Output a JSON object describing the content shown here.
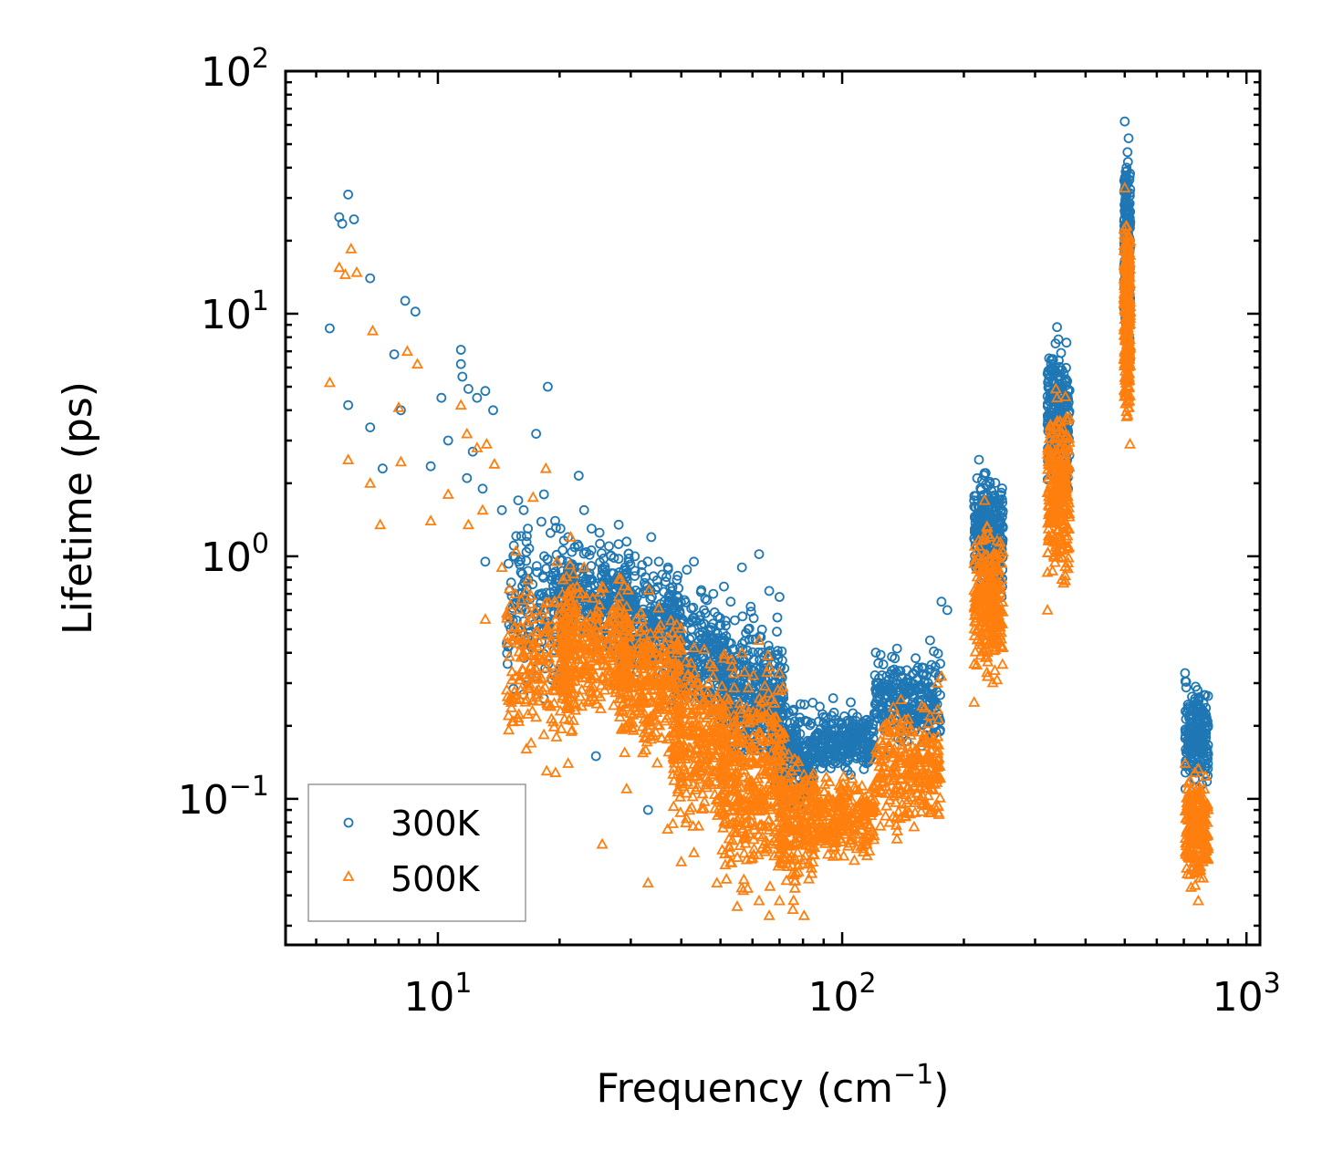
{
  "chart_data": {
    "type": "scatter",
    "title": "",
    "xlabel": "Frequency (cm",
    "xlabel_sup": "−1",
    "xlabel_tail": ")",
    "ylabel": "Lifetime (ps)",
    "xscale": "log",
    "yscale": "log",
    "xlim": [
      4.2,
      1080
    ],
    "ylim": [
      0.025,
      100
    ],
    "x_ticks": [
      {
        "value": 10,
        "base": "10",
        "exp": "1"
      },
      {
        "value": 100,
        "base": "10",
        "exp": "2"
      },
      {
        "value": 1000,
        "base": "10",
        "exp": "3"
      }
    ],
    "y_ticks": [
      {
        "value": 0.1,
        "base": "10",
        "exp": "−1"
      },
      {
        "value": 1,
        "base": "10",
        "exp": "0"
      },
      {
        "value": 10,
        "base": "10",
        "exp": "1"
      },
      {
        "value": 100,
        "base": "10",
        "exp": "2"
      }
    ],
    "legend_position": "bottom-left",
    "series": [
      {
        "name": "300K",
        "marker": "circle-open",
        "color": "#1f77b4",
        "points": [
          [
            5.4,
            8.7
          ],
          [
            5.7,
            25.0
          ],
          [
            5.8,
            23.5
          ],
          [
            6.0,
            31.0
          ],
          [
            6.2,
            24.5
          ],
          [
            6.0,
            4.2
          ],
          [
            6.8,
            14.0
          ],
          [
            6.8,
            3.4
          ],
          [
            7.3,
            2.3
          ],
          [
            7.8,
            6.8
          ],
          [
            8.3,
            11.3
          ],
          [
            8.8,
            10.2
          ],
          [
            8.1,
            4.0
          ],
          [
            9.6,
            2.35
          ],
          [
            10.2,
            4.5
          ],
          [
            10.6,
            3.0
          ],
          [
            11.4,
            7.1
          ],
          [
            11.5,
            5.5
          ],
          [
            11.4,
            6.2
          ],
          [
            11.9,
            4.9
          ],
          [
            12.5,
            4.5
          ],
          [
            13.1,
            4.8
          ],
          [
            13.7,
            4.0
          ],
          [
            12.9,
            1.9
          ],
          [
            11.8,
            2.1
          ],
          [
            12.2,
            2.7
          ],
          [
            13.1,
            0.95
          ],
          [
            14.4,
            1.55
          ],
          [
            15.8,
            1.7
          ],
          [
            16.3,
            1.55
          ],
          [
            16.7,
            1.3
          ],
          [
            17.5,
            3.2
          ],
          [
            18.3,
            1.8
          ],
          [
            18.7,
            5.0
          ],
          [
            19.5,
            1.4
          ],
          [
            20.1,
            1.3
          ],
          [
            21.0,
            1.2
          ],
          [
            22.3,
            2.15
          ],
          [
            23.0,
            1.55
          ],
          [
            24.0,
            1.3
          ],
          [
            25.1,
            1.25
          ],
          [
            26.5,
            1.1
          ],
          [
            27.2,
            0.85
          ],
          [
            28.0,
            1.35
          ],
          [
            29.3,
            1.15
          ],
          [
            30.7,
            1.0
          ],
          [
            32.0,
            0.92
          ],
          [
            33.7,
            1.2
          ],
          [
            35.2,
            0.95
          ],
          [
            37.1,
            0.9
          ],
          [
            39.0,
            0.8
          ],
          [
            41.3,
            0.88
          ],
          [
            43.0,
            0.95
          ],
          [
            45.5,
            0.6
          ],
          [
            48.0,
            0.7
          ],
          [
            51.0,
            0.75
          ],
          [
            53.0,
            0.65
          ],
          [
            56.5,
            0.9
          ],
          [
            59.4,
            0.62
          ],
          [
            62.3,
            1.02
          ],
          [
            66.0,
            0.72
          ],
          [
            70.0,
            0.68
          ],
          [
            24.6,
            0.15
          ],
          [
            33.1,
            0.09
          ],
          [
            75.5,
            0.23
          ],
          [
            81.0,
            0.21
          ],
          [
            88.0,
            0.24
          ],
          [
            95.0,
            0.26
          ],
          [
            105.0,
            0.25
          ],
          [
            115.0,
            0.2
          ],
          [
            128.0,
            0.26
          ],
          [
            140.0,
            0.32
          ],
          [
            152.0,
            0.38
          ],
          [
            165.0,
            0.45
          ],
          [
            176.0,
            0.65
          ],
          [
            182.0,
            0.6
          ],
          [
            212.0,
            1.7
          ],
          [
            218.0,
            2.5
          ],
          [
            225.0,
            2.2
          ],
          [
            232.0,
            1.3
          ],
          [
            240.0,
            0.85
          ],
          [
            248.0,
            0.68
          ],
          [
            322.0,
            3.5
          ],
          [
            332.0,
            6.5
          ],
          [
            340.0,
            8.8
          ],
          [
            348.0,
            5.0
          ],
          [
            355.0,
            2.7
          ],
          [
            362.0,
            1.9
          ],
          [
            500.0,
            62.0
          ],
          [
            505.0,
            40.0
          ],
          [
            508.0,
            25.0
          ],
          [
            512.0,
            12.0
          ],
          [
            515.0,
            6.5
          ],
          [
            705.0,
            0.33
          ],
          [
            720.0,
            0.24
          ],
          [
            740.0,
            0.2
          ],
          [
            760.0,
            0.26
          ],
          [
            780.0,
            0.22
          ],
          [
            800.0,
            0.15
          ]
        ]
      },
      {
        "name": "500K",
        "marker": "triangle-open",
        "color": "#ff7f0e",
        "points": [
          [
            5.4,
            5.2
          ],
          [
            5.7,
            15.5
          ],
          [
            5.9,
            14.5
          ],
          [
            6.1,
            18.5
          ],
          [
            6.3,
            14.8
          ],
          [
            6.0,
            2.5
          ],
          [
            6.8,
            2.0
          ],
          [
            6.9,
            8.5
          ],
          [
            7.2,
            1.35
          ],
          [
            8.0,
            4.1
          ],
          [
            8.4,
            7.0
          ],
          [
            8.9,
            6.2
          ],
          [
            8.1,
            2.45
          ],
          [
            9.6,
            1.4
          ],
          [
            10.6,
            1.8
          ],
          [
            11.4,
            4.2
          ],
          [
            11.8,
            3.2
          ],
          [
            12.5,
            2.8
          ],
          [
            13.2,
            2.9
          ],
          [
            13.8,
            2.4
          ],
          [
            11.9,
            1.35
          ],
          [
            12.9,
            1.55
          ],
          [
            13.1,
            0.55
          ],
          [
            14.4,
            0.9
          ],
          [
            15.6,
            1.05
          ],
          [
            16.7,
            0.8
          ],
          [
            17.2,
            1.75
          ],
          [
            18.5,
            2.3
          ],
          [
            19.7,
            0.95
          ],
          [
            21.3,
            1.2
          ],
          [
            23.0,
            0.9
          ],
          [
            25.5,
            0.75
          ],
          [
            27.0,
            0.58
          ],
          [
            29.3,
            0.62
          ],
          [
            32.0,
            0.55
          ],
          [
            35.2,
            0.48
          ],
          [
            39.0,
            0.4
          ],
          [
            43.0,
            0.42
          ],
          [
            48.0,
            0.35
          ],
          [
            51.0,
            0.38
          ],
          [
            56.5,
            0.4
          ],
          [
            62.3,
            0.45
          ],
          [
            66.0,
            0.35
          ],
          [
            70.0,
            0.33
          ],
          [
            15.2,
            0.25
          ],
          [
            17.0,
            0.17
          ],
          [
            21.0,
            0.14
          ],
          [
            25.5,
            0.065
          ],
          [
            29.3,
            0.11
          ],
          [
            33.1,
            0.045
          ],
          [
            37.0,
            0.075
          ],
          [
            40.0,
            0.055
          ],
          [
            43.0,
            0.06
          ],
          [
            49.0,
            0.045
          ],
          [
            55.0,
            0.036
          ],
          [
            62.3,
            0.038
          ],
          [
            66.0,
            0.033
          ],
          [
            70.0,
            0.038
          ],
          [
            75.5,
            0.035
          ],
          [
            80.5,
            0.033
          ],
          [
            88.0,
            0.07
          ],
          [
            95.0,
            0.058
          ],
          [
            105.0,
            0.075
          ],
          [
            115.0,
            0.065
          ],
          [
            128.0,
            0.085
          ],
          [
            140.0,
            0.12
          ],
          [
            152.0,
            0.16
          ],
          [
            165.0,
            0.22
          ],
          [
            172.0,
            0.3
          ],
          [
            176.0,
            0.32
          ],
          [
            212.0,
            0.25
          ],
          [
            218.0,
            1.1
          ],
          [
            225.0,
            1.7
          ],
          [
            232.0,
            0.9
          ],
          [
            240.0,
            0.55
          ],
          [
            248.0,
            0.42
          ],
          [
            322.0,
            0.6
          ],
          [
            332.0,
            1.5
          ],
          [
            340.0,
            4.5
          ],
          [
            348.0,
            2.8
          ],
          [
            355.0,
            1.4
          ],
          [
            362.0,
            1.1
          ],
          [
            500.0,
            33.0
          ],
          [
            505.0,
            18.0
          ],
          [
            508.0,
            9.0
          ],
          [
            512.0,
            5.0
          ],
          [
            515.0,
            2.9
          ],
          [
            705.0,
            0.14
          ],
          [
            720.0,
            0.1
          ],
          [
            740.0,
            0.065
          ],
          [
            760.0,
            0.038
          ],
          [
            780.0,
            0.055
          ],
          [
            800.0,
            0.08
          ]
        ],
        "bands": [
          {
            "x": [
              14.8,
              22.0
            ],
            "y": [
              0.12,
              1.05
            ],
            "density": 220
          },
          {
            "x": [
              20.0,
              30.0
            ],
            "y": [
              0.18,
              0.95
            ],
            "density": 320
          },
          {
            "x": [
              28.0,
              40.0
            ],
            "y": [
              0.12,
              0.75
            ],
            "density": 320
          },
          {
            "x": [
              38.0,
              52.0
            ],
            "y": [
              0.06,
              0.5
            ],
            "density": 300
          },
          {
            "x": [
              50.0,
              72.0
            ],
            "y": [
              0.033,
              0.45
            ],
            "density": 420
          },
          {
            "x": [
              70.0,
              85.0
            ],
            "y": [
              0.035,
              0.18
            ],
            "density": 200
          },
          {
            "x": [
              85.0,
              120.0
            ],
            "y": [
              0.05,
              0.14
            ],
            "density": 250
          },
          {
            "x": [
              120.0,
              175.0
            ],
            "y": [
              0.065,
              0.28
            ],
            "density": 260
          },
          {
            "x": [
              212.0,
              250.0
            ],
            "y": [
              0.25,
              1.7
            ],
            "density": 260
          },
          {
            "x": [
              322.0,
              365.0
            ],
            "y": [
              0.6,
              5.5
            ],
            "density": 260
          },
          {
            "x": [
              498.0,
              516.0
            ],
            "y": [
              2.9,
              33.0
            ],
            "density": 260
          },
          {
            "x": [
              705.0,
              805.0
            ],
            "y": [
              0.038,
              0.15
            ],
            "density": 220
          }
        ]
      }
    ],
    "dense_bands_300K": [
      {
        "x": [
          14.8,
          22.0
        ],
        "y": [
          0.22,
          1.7
        ],
        "density": 200
      },
      {
        "x": [
          20.0,
          30.0
        ],
        "y": [
          0.35,
          1.3
        ],
        "density": 280
      },
      {
        "x": [
          28.0,
          40.0
        ],
        "y": [
          0.25,
          1.05
        ],
        "density": 280
      },
      {
        "x": [
          38.0,
          52.0
        ],
        "y": [
          0.18,
          0.8
        ],
        "density": 260
      },
      {
        "x": [
          50.0,
          72.0
        ],
        "y": [
          0.1,
          0.72
        ],
        "density": 360
      },
      {
        "x": [
          70.0,
          85.0
        ],
        "y": [
          0.08,
          0.28
        ],
        "density": 200
      },
      {
        "x": [
          85.0,
          120.0
        ],
        "y": [
          0.12,
          0.25
        ],
        "density": 250
      },
      {
        "x": [
          120.0,
          175.0
        ],
        "y": [
          0.14,
          0.45
        ],
        "density": 260
      },
      {
        "x": [
          212.0,
          250.0
        ],
        "y": [
          0.6,
          2.7
        ],
        "density": 260
      },
      {
        "x": [
          322.0,
          365.0
        ],
        "y": [
          1.5,
          9.0
        ],
        "density": 260
      },
      {
        "x": [
          498.0,
          516.0
        ],
        "y": [
          5.5,
          62.0
        ],
        "density": 260
      },
      {
        "x": [
          705.0,
          805.0
        ],
        "y": [
          0.1,
          0.33
        ],
        "density": 220
      }
    ]
  }
}
